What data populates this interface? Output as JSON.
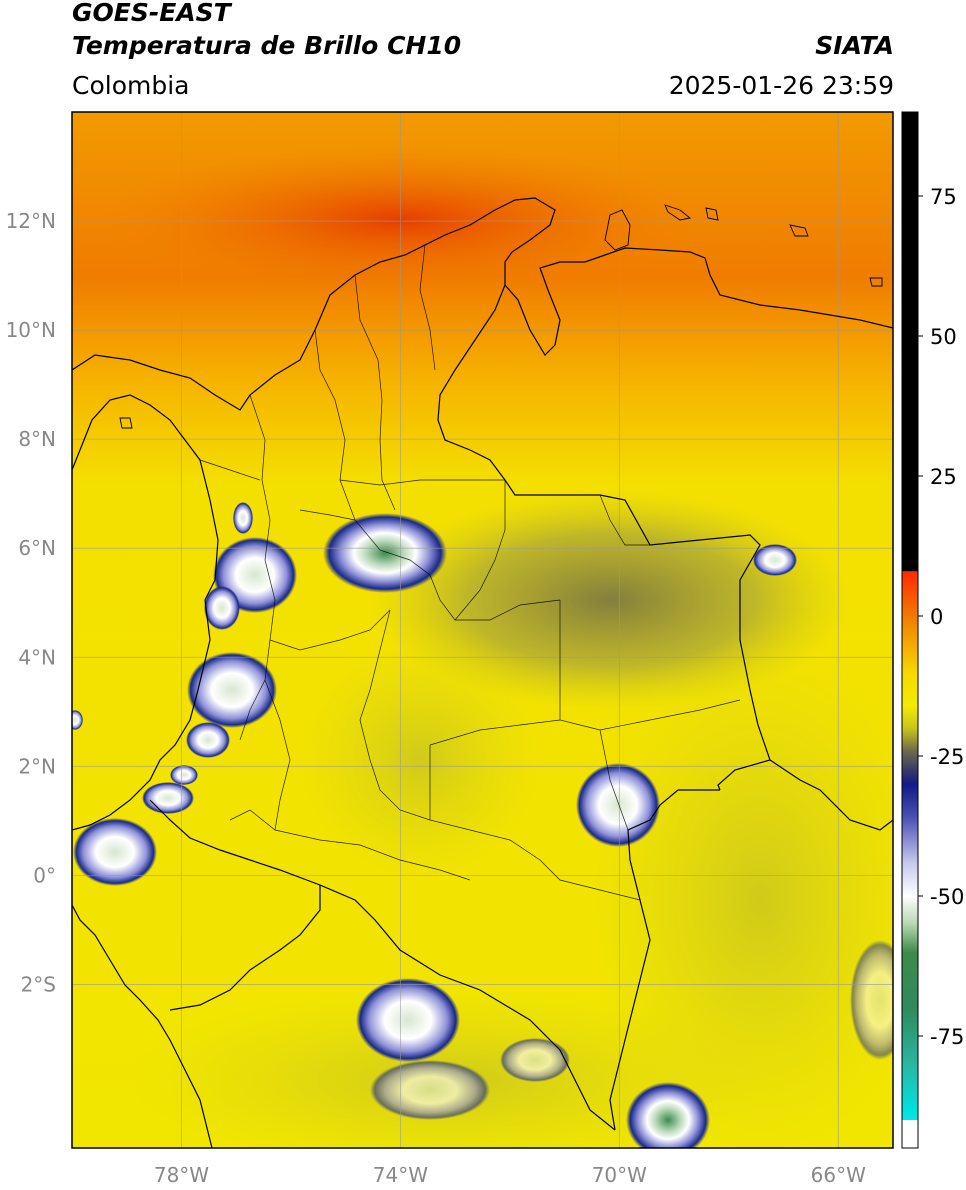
{
  "header": {
    "satellite": "GOES-EAST",
    "product": "Temperatura de Brillo CH10",
    "region": "Colombia",
    "agency": "SIATA",
    "datetime": "2025-01-26 23:59"
  },
  "map": {
    "lat_labels": [
      "12°N",
      "10°N",
      "8°N",
      "6°N",
      "4°N",
      "2°N",
      "0°",
      "2°S"
    ],
    "lon_labels": [
      "78°W",
      "74°W",
      "70°W",
      "66°W"
    ],
    "extent": {
      "lon_min": -80.0,
      "lon_max": -65.0,
      "lat_min": -5.0,
      "lat_max": 14.0
    },
    "colors": {
      "warm_north": "#f08a00",
      "hot_core": "#e63a00",
      "background": "#f0e800",
      "olive": "#c7c420",
      "dark_olive": "#6f6d48",
      "navy": "#1a2a8a",
      "white": "#ffffff",
      "green": "#3d8a50"
    }
  },
  "colorbar": {
    "ticks": [
      "75",
      "50",
      "25",
      "0",
      "-25",
      "-50",
      "-75"
    ],
    "tick_values": [
      75,
      50,
      25,
      0,
      -25,
      -50,
      -75
    ],
    "range": [
      -95,
      90
    ]
  }
}
